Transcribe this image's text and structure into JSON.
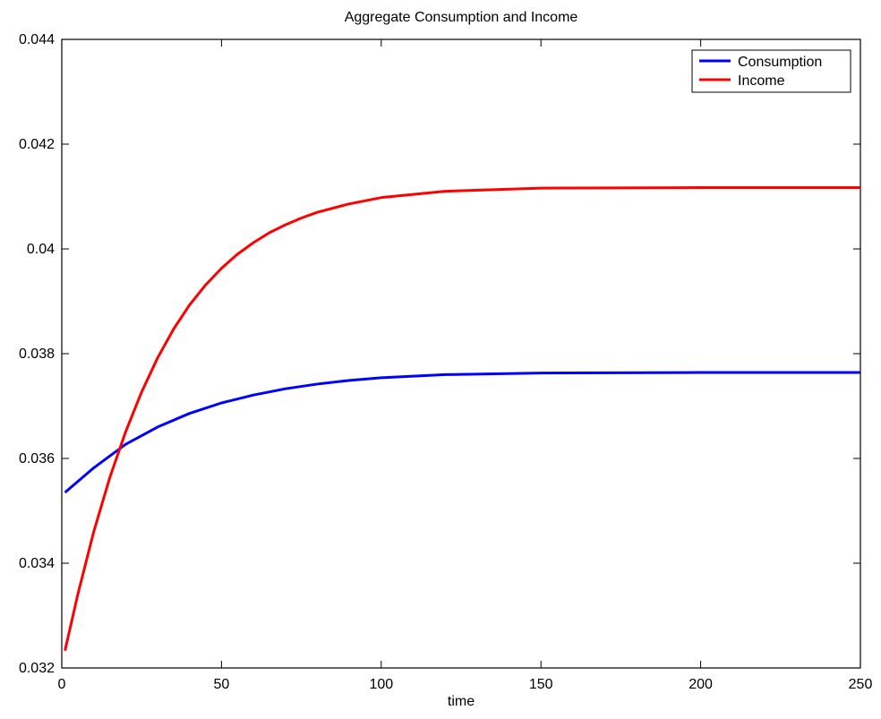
{
  "chart_data": {
    "type": "line",
    "title": "Aggregate Consumption and Income",
    "xlabel": "time",
    "ylabel": "",
    "xlim": [
      0,
      250
    ],
    "ylim": [
      0.032,
      0.044
    ],
    "x_ticks": [
      0,
      50,
      100,
      150,
      200,
      250
    ],
    "x_tick_labels": [
      "0",
      "50",
      "100",
      "150",
      "200",
      "250"
    ],
    "y_ticks": [
      0.032,
      0.034,
      0.036,
      0.038,
      0.04,
      0.042,
      0.044
    ],
    "y_tick_labels": [
      "0.032",
      "0.034",
      "0.036",
      "0.038",
      "0.04",
      "0.042",
      "0.044"
    ],
    "grid": false,
    "legend_position": "top-right",
    "series": [
      {
        "name": "Consumption",
        "color": "#0000ff",
        "x": [
          1,
          10,
          20,
          30,
          40,
          50,
          60,
          70,
          80,
          90,
          100,
          120,
          150,
          200,
          250
        ],
        "values": [
          0.03535,
          0.03582,
          0.03627,
          0.0366,
          0.03686,
          0.03706,
          0.03721,
          0.03733,
          0.03742,
          0.03749,
          0.03754,
          0.0376,
          0.03763,
          0.03764,
          0.03764
        ]
      },
      {
        "name": "Income",
        "color": "#ff0000",
        "x": [
          1,
          5,
          10,
          15,
          20,
          25,
          30,
          35,
          40,
          45,
          50,
          55,
          60,
          65,
          70,
          75,
          80,
          90,
          100,
          120,
          150,
          200,
          250
        ],
        "values": [
          0.03233,
          0.0334,
          0.0346,
          0.03563,
          0.03651,
          0.03727,
          0.03792,
          0.03847,
          0.03893,
          0.03931,
          0.03963,
          0.0399,
          0.04012,
          0.04031,
          0.04046,
          0.04059,
          0.0407,
          0.04086,
          0.04098,
          0.0411,
          0.04116,
          0.04117,
          0.04117
        ]
      }
    ]
  }
}
